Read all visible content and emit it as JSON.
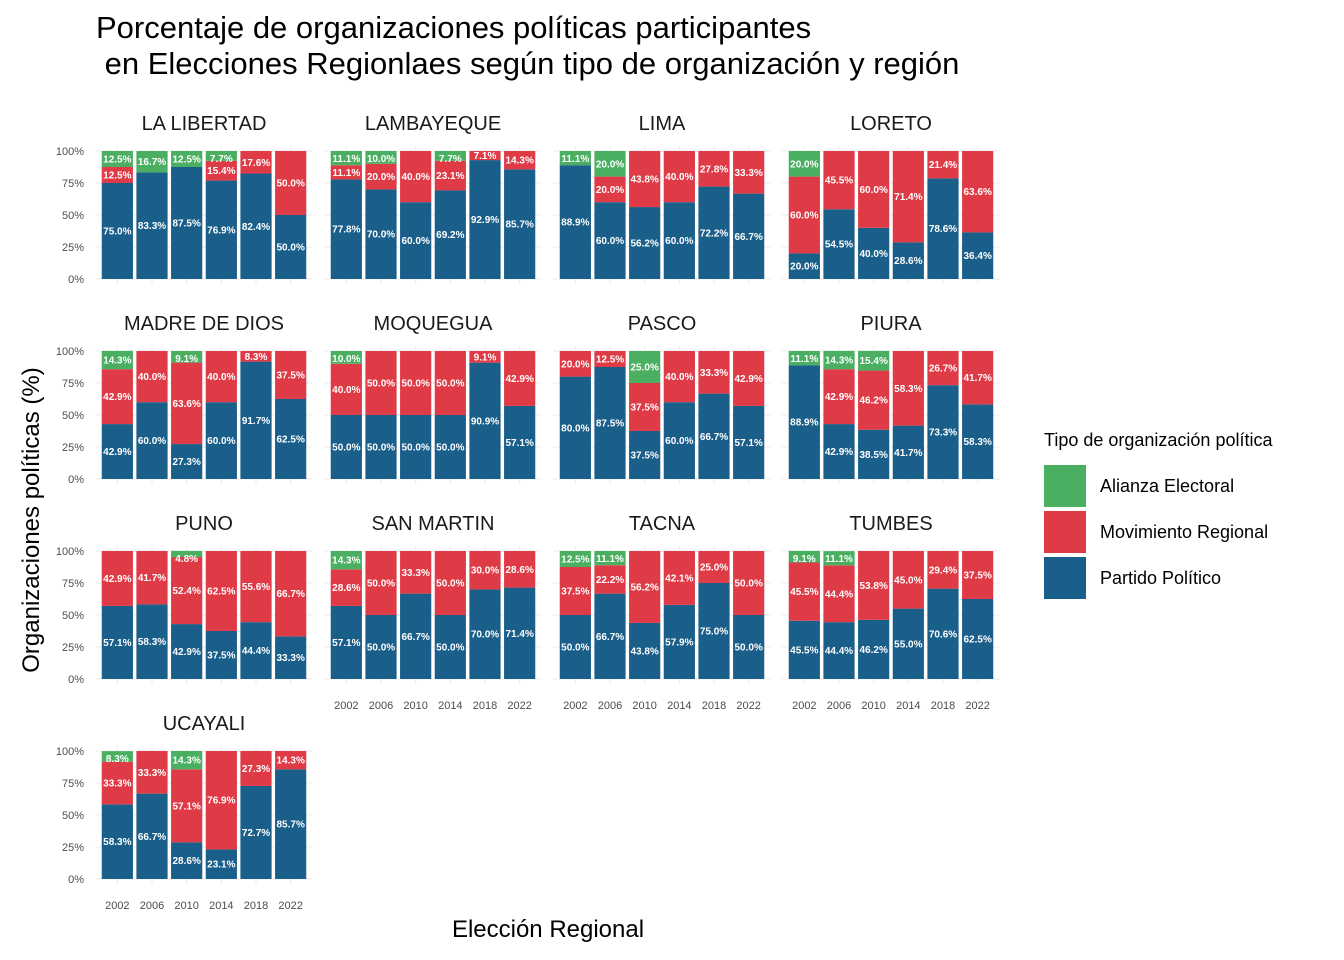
{
  "chart_data": {
    "type": "bar",
    "stacked": true,
    "percent": true,
    "title": [
      "Porcentaje de organizaciones políticas participantes",
      " en Elecciones Regionlaes según tipo de organización y región"
    ],
    "xlabel": "Elección Regional",
    "ylabel": "Organizaciones políticas (%)",
    "y_ticks": [
      "0%",
      "25%",
      "50%",
      "75%",
      "100%"
    ],
    "ylim": [
      0,
      100
    ],
    "categories": [
      "2002",
      "2006",
      "2010",
      "2014",
      "2018",
      "2022"
    ],
    "legend_title": "Tipo de organización política",
    "legend_position": "right",
    "series": [
      {
        "name": "Alianza Electoral",
        "color": "#4BAF62"
      },
      {
        "name": "Movimiento Regional",
        "color": "#DF3B47"
      },
      {
        "name": "Partido Político",
        "color": "#1A5E8A"
      }
    ],
    "panels": [
      {
        "region": "LA LIBERTAD",
        "alianza": [
          12.5,
          16.7,
          12.5,
          7.7,
          0,
          0
        ],
        "movimiento": [
          12.5,
          0,
          0,
          15.4,
          17.6,
          50.0
        ],
        "partido": [
          75.0,
          83.3,
          87.5,
          76.9,
          82.4,
          50.0
        ]
      },
      {
        "region": "LAMBAYEQUE",
        "alianza": [
          11.1,
          10.0,
          0,
          7.7,
          0,
          0
        ],
        "movimiento": [
          11.1,
          20.0,
          40.0,
          23.1,
          7.1,
          14.3
        ],
        "partido": [
          77.8,
          70.0,
          60.0,
          69.2,
          92.9,
          85.7
        ]
      },
      {
        "region": "LIMA",
        "alianza": [
          11.1,
          20.0,
          0,
          0,
          0,
          0
        ],
        "movimiento": [
          0,
          20.0,
          43.8,
          40.0,
          27.8,
          33.3
        ],
        "partido": [
          88.9,
          60.0,
          56.2,
          60.0,
          72.2,
          66.7
        ]
      },
      {
        "region": "LORETO",
        "alianza": [
          20.0,
          0,
          0,
          0,
          0,
          0
        ],
        "movimiento": [
          60.0,
          45.5,
          60.0,
          71.4,
          21.4,
          63.6
        ],
        "partido": [
          20.0,
          54.5,
          40.0,
          28.6,
          78.6,
          36.4
        ]
      },
      {
        "region": "MADRE DE DIOS",
        "alianza": [
          14.3,
          0,
          9.1,
          0,
          0,
          0
        ],
        "movimiento": [
          42.9,
          40.0,
          63.6,
          40.0,
          8.3,
          37.5
        ],
        "partido": [
          42.9,
          60.0,
          27.3,
          60.0,
          91.7,
          62.5
        ]
      },
      {
        "region": "MOQUEGUA",
        "alianza": [
          10.0,
          0,
          0,
          0,
          0,
          0
        ],
        "movimiento": [
          40.0,
          50.0,
          50.0,
          50.0,
          9.1,
          42.9
        ],
        "partido": [
          50.0,
          50.0,
          50.0,
          50.0,
          90.9,
          57.1
        ]
      },
      {
        "region": "PASCO",
        "alianza": [
          0,
          0,
          25.0,
          0,
          0,
          0
        ],
        "movimiento": [
          20.0,
          12.5,
          37.5,
          40.0,
          33.3,
          42.9
        ],
        "partido": [
          80.0,
          87.5,
          37.5,
          60.0,
          66.7,
          57.1
        ]
      },
      {
        "region": "PIURA",
        "alianza": [
          11.1,
          14.3,
          15.4,
          0,
          0,
          0
        ],
        "movimiento": [
          0,
          42.9,
          46.2,
          58.3,
          26.7,
          41.7
        ],
        "partido": [
          88.9,
          42.9,
          38.5,
          41.7,
          73.3,
          58.3
        ]
      },
      {
        "region": "PUNO",
        "alianza": [
          0,
          0,
          4.8,
          0,
          0,
          0
        ],
        "movimiento": [
          42.9,
          41.7,
          52.4,
          62.5,
          55.6,
          66.7
        ],
        "partido": [
          57.1,
          58.3,
          42.9,
          37.5,
          44.4,
          33.3
        ]
      },
      {
        "region": "SAN MARTIN",
        "alianza": [
          14.3,
          0,
          0,
          0,
          0,
          0
        ],
        "movimiento": [
          28.6,
          50.0,
          33.3,
          50.0,
          30.0,
          28.6
        ],
        "partido": [
          57.1,
          50.0,
          66.7,
          50.0,
          70.0,
          71.4
        ]
      },
      {
        "region": "TACNA",
        "alianza": [
          12.5,
          11.1,
          0,
          0,
          0,
          0
        ],
        "movimiento": [
          37.5,
          22.2,
          56.2,
          42.1,
          25.0,
          50.0
        ],
        "partido": [
          50.0,
          66.7,
          43.8,
          57.9,
          75.0,
          50.0
        ]
      },
      {
        "region": "TUMBES",
        "alianza": [
          9.1,
          11.1,
          0,
          0,
          0,
          0
        ],
        "movimiento": [
          45.5,
          44.4,
          53.8,
          45.0,
          29.4,
          37.5
        ],
        "partido": [
          45.5,
          44.4,
          46.2,
          55.0,
          70.6,
          62.5
        ]
      },
      {
        "region": "UCAYALI",
        "alianza": [
          8.3,
          0,
          14.3,
          0,
          0,
          0
        ],
        "movimiento": [
          33.3,
          33.3,
          57.1,
          76.9,
          27.3,
          14.3
        ],
        "partido": [
          58.3,
          66.7,
          28.6,
          23.1,
          72.7,
          85.7
        ]
      }
    ]
  }
}
